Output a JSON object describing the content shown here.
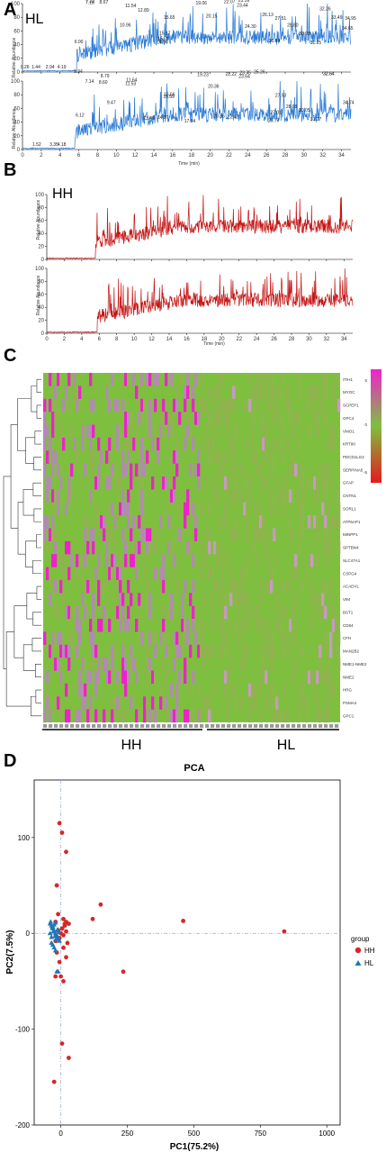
{
  "panelA": {
    "letter": "A",
    "group": "HL",
    "ylabel": "Relative Abundance",
    "xlabel": "Time (min)",
    "yticks": [
      0,
      20,
      40,
      60,
      80,
      100
    ],
    "xticks": [
      0,
      2,
      4,
      6,
      8,
      10,
      12,
      14,
      16,
      18,
      20,
      22,
      24,
      26,
      28,
      30,
      32,
      34
    ],
    "top_peaks": [
      "0.26",
      "1.44",
      "2.94",
      "4.19",
      "6.00",
      "7.18",
      "7.22",
      "8.67",
      "8.87",
      "10.96",
      "11.54",
      "11.77",
      "12.89",
      "14.90",
      "15.01",
      "15.17",
      "15.65",
      "17.79",
      "19.06",
      "20.15",
      "22.07",
      "22.28",
      "23.44",
      "23.59",
      "24.30",
      "25.27",
      "26.13",
      "26.84",
      "27.51",
      "28.80",
      "30.03",
      "31.25",
      "32.26",
      "33.49",
      "34.65",
      "34.95"
    ],
    "bottom_peaks": [
      "1.52",
      "3.35",
      "4.18",
      "5.94",
      "6.12",
      "7.14",
      "8.60",
      "8.79",
      "9.47",
      "11.53",
      "11.64",
      "13.46",
      "14.97",
      "15.66",
      "15.59",
      "17.84",
      "19.23",
      "20.36",
      "20.96",
      "22.22",
      "22.42",
      "23.64",
      "23.75",
      "25.26",
      "26.77",
      "27.01",
      "27.53",
      "28.68",
      "30.05",
      "31.27",
      "32.64",
      "32.64",
      "34.74"
    ]
  },
  "panelB": {
    "letter": "B",
    "group": "HH",
    "ylabel": "Relative Abundance",
    "xlabel": "Time (min)",
    "yticks": [
      0,
      20,
      40,
      60,
      80,
      100
    ],
    "xticks": [
      0,
      2,
      4,
      6,
      8,
      10,
      12,
      14,
      16,
      18,
      20,
      22,
      24,
      26,
      28,
      30,
      32,
      34
    ]
  },
  "panelC": {
    "letter": "C",
    "genes": [
      "ITIH1",
      "MYOC",
      "SCPEP1",
      "GPC4",
      "VMO1",
      "KRT80",
      "PDCD1LG2",
      "SERPINA5",
      "GFAP",
      "CNTN1",
      "SORL1",
      "ATP6AP1",
      "MINPP1",
      "SPTBN4",
      "SLC47A1",
      "CSPG4",
      "ACADVL",
      "VIM",
      "BST1",
      "CD84",
      "CFH",
      "MAN2B2",
      "NME1-NME2",
      "NME2",
      "HRG",
      "PSMA4",
      "GPC1"
    ],
    "legend_ticks": [
      "5",
      "0",
      "-5"
    ],
    "groups": [
      "HH",
      "HL"
    ],
    "colors": {
      "high": "#ee22cc",
      "mid": "#7fbf3f",
      "low": "#e41a1c"
    }
  },
  "panelD": {
    "letter": "D",
    "chart_data": {
      "type": "scatter",
      "title": "PCA",
      "xlabel": "PC1(75.2%)",
      "ylabel": "PC2(7.5%)",
      "xlim": [
        -100,
        1050
      ],
      "ylim": [
        -200,
        160
      ],
      "xticks": [
        0,
        250,
        500,
        750,
        1000
      ],
      "yticks": [
        -200,
        -100,
        0,
        100
      ],
      "legend_title": "group",
      "legend_position": "right",
      "series": [
        {
          "name": "HH",
          "color": "#d62728",
          "marker": "circle",
          "x": [
            -5,
            5,
            20,
            -15,
            -10,
            10,
            15,
            -20,
            30,
            5,
            20,
            10,
            -10,
            25,
            150,
            120,
            460,
            840,
            235,
            0,
            10,
            -5,
            -15,
            20,
            -20,
            5,
            30,
            -25,
            -10,
            15,
            0,
            -20,
            10,
            5,
            20,
            -5
          ],
          "y": [
            115,
            105,
            85,
            50,
            20,
            15,
            10,
            12,
            10,
            5,
            2,
            -2,
            -5,
            -10,
            30,
            15,
            13,
            2,
            -40,
            -45,
            -50,
            -30,
            -20,
            -25,
            -45,
            -115,
            -130,
            -155,
            3,
            8,
            0,
            -8,
            -15,
            5,
            12,
            -5
          ]
        },
        {
          "name": "HL",
          "color": "#1f77b4",
          "marker": "triangle",
          "x": [
            -40,
            -35,
            -30,
            -25,
            -20,
            -15,
            -10,
            -5,
            -38,
            -32,
            -28,
            -22,
            -18,
            -12,
            -8,
            -35,
            -30,
            -25,
            -20,
            -40,
            -35,
            -30,
            -25,
            -20,
            -15,
            -10
          ],
          "y": [
            10,
            8,
            5,
            3,
            0,
            -2,
            -5,
            -8,
            12,
            6,
            2,
            -3,
            -6,
            4,
            1,
            -10,
            -12,
            -15,
            -18,
            0,
            -4,
            7,
            9,
            11,
            -40,
            -40
          ]
        }
      ]
    }
  }
}
